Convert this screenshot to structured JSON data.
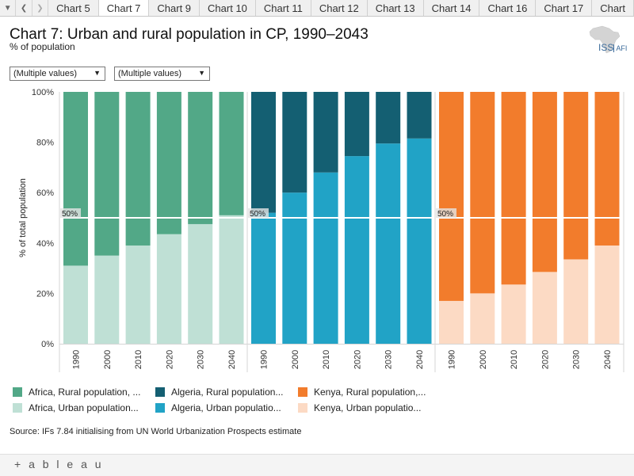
{
  "tabs": {
    "items": [
      "Chart 5",
      "Chart 7",
      "Chart 9",
      "Chart 10",
      "Chart 11",
      "Chart 12",
      "Chart 13",
      "Chart 14",
      "Chart 16",
      "Chart 17",
      "Chart"
    ],
    "active": "Chart 7"
  },
  "header": {
    "title": "Chart 7: Urban and rural population in CP, 1990–2043",
    "subtitle": "% of population"
  },
  "logo": {
    "iss": "ISS",
    "afi": "AFI"
  },
  "filters": [
    {
      "value": "(Multiple values)"
    },
    {
      "value": "(Multiple values)"
    }
  ],
  "chart_data": {
    "type": "bar",
    "stacked": true,
    "title": "Chart 7: Urban and rural population in CP, 1990–2043",
    "ylabel": "% of total population",
    "ylim": [
      0,
      100
    ],
    "yticks": [
      "0%",
      "20%",
      "40%",
      "60%",
      "80%",
      "100%"
    ],
    "categories": [
      "1990",
      "2000",
      "2010",
      "2020",
      "2030",
      "2040"
    ],
    "reference_line": {
      "value": 50,
      "label": "50%"
    },
    "panels": [
      {
        "name": "Africa",
        "series": [
          {
            "name": "Africa, Urban population",
            "color": "#bfe0d5",
            "values": [
              31,
              35,
              39,
              43.5,
              47.5,
              51
            ]
          },
          {
            "name": "Africa, Rural population",
            "color": "#52a887",
            "values": [
              69,
              65,
              61,
              56.5,
              52.5,
              49
            ]
          }
        ]
      },
      {
        "name": "Algeria",
        "series": [
          {
            "name": "Algeria, Urban population",
            "color": "#21a3c6",
            "values": [
              52,
              60,
              68,
              74.5,
              79.5,
              81.5
            ]
          },
          {
            "name": "Algeria, Rural population",
            "color": "#145f72",
            "values": [
              48,
              40,
              32,
              25.5,
              20.5,
              18.5
            ]
          }
        ]
      },
      {
        "name": "Kenya",
        "series": [
          {
            "name": "Kenya, Urban population",
            "color": "#fcdac4",
            "values": [
              17,
              20,
              23.5,
              28.5,
              33.5,
              39
            ]
          },
          {
            "name": "Kenya, Rural population",
            "color": "#f27c2c",
            "values": [
              83,
              80,
              76.5,
              71.5,
              66.5,
              61
            ]
          }
        ]
      }
    ]
  },
  "legend": [
    {
      "label": "Africa, Rural population, ...",
      "color": "#52a887"
    },
    {
      "label": "Algeria, Rural population...",
      "color": "#145f72"
    },
    {
      "label": "Kenya, Rural population,...",
      "color": "#f27c2c"
    },
    {
      "label": "Africa, Urban population...",
      "color": "#bfe0d5"
    },
    {
      "label": "Algeria, Urban populatio...",
      "color": "#21a3c6"
    },
    {
      "label": "Kenya, Urban populatio...",
      "color": "#fcdac4"
    }
  ],
  "source": "Source: IFs 7.84 initialising from UN World Urbanization Prospects estimate",
  "footer": {
    "brand": "+ a b l e a u"
  }
}
